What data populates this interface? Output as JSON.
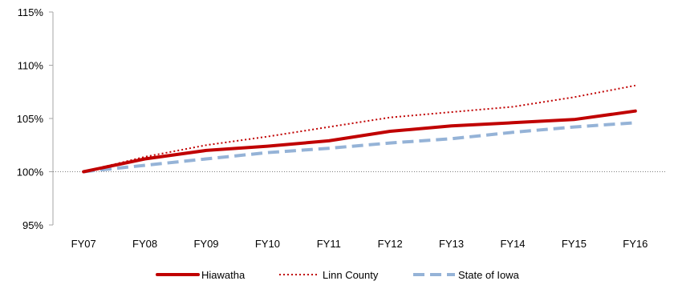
{
  "chart_data": {
    "type": "line",
    "title": "",
    "xlabel": "",
    "ylabel": "",
    "categories": [
      "FY07",
      "FY08",
      "FY09",
      "FY10",
      "FY11",
      "FY12",
      "FY13",
      "FY14",
      "FY15",
      "FY16"
    ],
    "ylim": [
      95,
      115
    ],
    "yticks": [
      95,
      100,
      105,
      110,
      115
    ],
    "ytick_labels": [
      "95%",
      "100%",
      "105%",
      "110%",
      "115%"
    ],
    "reference_line": 100,
    "grid": false,
    "legend_position": "bottom",
    "series": [
      {
        "name": "Hiawatha",
        "color": "#C00000",
        "style": "solid",
        "values": [
          100.0,
          101.2,
          102.0,
          102.4,
          102.9,
          103.8,
          104.3,
          104.6,
          104.9,
          105.7
        ]
      },
      {
        "name": "Linn County",
        "color": "#C00000",
        "style": "dotted",
        "values": [
          100.0,
          101.4,
          102.5,
          103.3,
          104.2,
          105.1,
          105.6,
          106.1,
          107.0,
          108.1
        ]
      },
      {
        "name": "State of Iowa",
        "color": "#95B3D7",
        "style": "dashed",
        "values": [
          100.0,
          100.6,
          101.2,
          101.8,
          102.2,
          102.7,
          103.1,
          103.7,
          104.2,
          104.6
        ]
      }
    ]
  }
}
